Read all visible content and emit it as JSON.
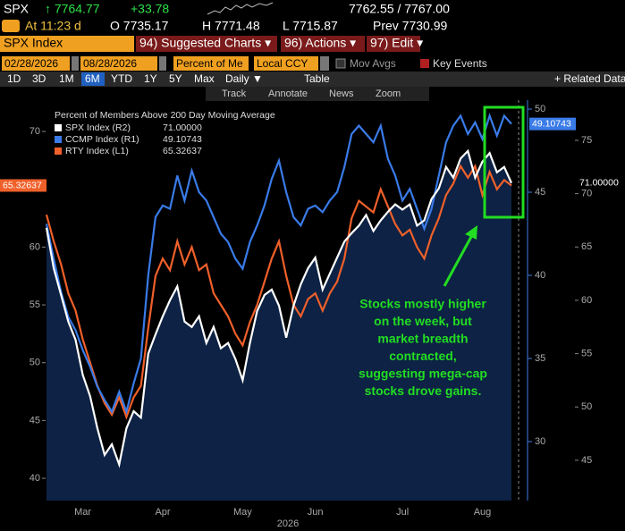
{
  "header": {
    "ticker": "SPX",
    "last": "↑ 7764.77",
    "change": "+33.78",
    "bid_ask": "7762.55 / 7767.00",
    "time": "At 11:23 d",
    "open": "O 7735.17",
    "high": "H 7771.48",
    "low": "L 7715.87",
    "prev": "Prev 7730.99"
  },
  "menu": {
    "security": "SPX Index",
    "items": [
      "94) Suggested Charts ▾",
      "96) Actions ▾",
      "97) Edit ▾"
    ]
  },
  "controls": {
    "start_date": "02/28/2026",
    "end_date": "08/28/2026",
    "field": "Percent of Me",
    "currency": "Local CCY",
    "options": [
      "Mov Avgs",
      "Key Events"
    ]
  },
  "periods": [
    "1D",
    "3D",
    "1M",
    "6M",
    "YTD",
    "1Y",
    "5Y",
    "Max"
  ],
  "selected_period_index": 3,
  "frequency": "Daily ▼",
  "table": "Table",
  "related": "+ Related Data",
  "tools": [
    "Track",
    "Annotate",
    "News",
    "Zoom"
  ],
  "chart_data": {
    "type": "line",
    "legend_title": "Percent of Members Above 200 Day Moving Average",
    "x_title": "2026",
    "categories": [
      null,
      null,
      null,
      null,
      null,
      "Mar",
      null,
      null,
      null,
      null,
      null,
      null,
      null,
      null,
      null,
      null,
      "Apr",
      null,
      null,
      null,
      null,
      null,
      null,
      null,
      null,
      null,
      null,
      "May",
      null,
      null,
      null,
      null,
      null,
      null,
      null,
      null,
      null,
      "Jun",
      null,
      null,
      null,
      null,
      null,
      null,
      null,
      null,
      null,
      null,
      null,
      "Jul",
      null,
      null,
      null,
      null,
      null,
      null,
      null,
      null,
      null,
      null,
      "Aug",
      null,
      null,
      null,
      null
    ],
    "ylim": [
      38.07,
      72.71
    ],
    "yticks": [
      40,
      45,
      50,
      55,
      60,
      65,
      70
    ],
    "y2lim": [
      26.45,
      50.54
    ],
    "y2ticks": [
      30,
      35,
      40,
      45,
      50
    ],
    "y3lim": [
      41.22,
      78.77
    ],
    "y3ticks": [
      45,
      50,
      55,
      60,
      65,
      70,
      75
    ],
    "series": [
      {
        "name": "SPX Index (R2)",
        "color": "#ffffff",
        "axis": "y3",
        "last_value_label": "71.00000",
        "values": [
          66.8,
          63,
          60.5,
          58,
          56.3,
          53,
          51,
          48,
          45.5,
          46.5,
          44.6,
          48,
          49.6,
          49,
          55,
          56.8,
          58.5,
          60,
          61.3,
          58,
          57.5,
          58.5,
          56,
          57.5,
          55.5,
          56,
          54.5,
          52.5,
          56,
          59,
          60.5,
          61,
          59.5,
          56.5,
          59.5,
          61.5,
          63,
          64,
          61,
          62.5,
          64,
          65.5,
          66.3,
          67,
          68,
          66.5,
          67.5,
          68.3,
          69,
          68.5,
          69,
          67,
          67.5,
          69.5,
          70.5,
          72.5,
          71.5,
          73.3,
          74,
          71.5,
          73,
          73.8,
          72,
          72.5,
          71
        ]
      },
      {
        "name": "CCMP Index (R1)",
        "color": "#3a7be8",
        "axis": "y2",
        "last_value_label": "49.10743",
        "values": [
          43.1,
          41,
          39,
          37.5,
          36.7,
          35.5,
          34.5,
          33.3,
          32.5,
          31.8,
          33,
          31.8,
          33.5,
          35,
          40,
          43.5,
          44.2,
          44,
          46,
          44.5,
          46.3,
          45,
          44.5,
          43.5,
          42.5,
          42,
          41,
          40.4,
          42,
          43,
          44.2,
          45.8,
          46.9,
          45,
          43.5,
          43,
          44,
          44.2,
          43.8,
          44.5,
          45,
          46.5,
          48.5,
          49,
          48.5,
          48,
          49,
          47,
          46,
          44.5,
          45.2,
          44,
          42.8,
          44,
          46,
          48,
          49,
          49.6,
          48.5,
          49.2,
          48.2,
          49.6,
          48.4,
          49.6,
          49.10743
        ]
      },
      {
        "name": "RTY Index (L1)",
        "color": "#f0602a",
        "axis": "y",
        "last_value_label": "65.32637",
        "values": [
          62.8,
          60.5,
          58.5,
          56,
          54.5,
          52,
          50,
          48,
          46.5,
          45.5,
          47,
          45.3,
          47,
          48,
          53,
          57.5,
          59,
          58,
          60.5,
          58.5,
          60,
          58,
          58.5,
          56,
          55,
          54,
          52.5,
          51.5,
          53.5,
          55,
          57,
          59,
          60.5,
          57.5,
          55,
          54,
          55.5,
          56,
          54.5,
          56,
          57,
          59,
          62.5,
          64,
          63.5,
          63,
          65,
          63.5,
          62,
          61,
          61.5,
          60,
          59,
          61,
          62.5,
          64.5,
          65.5,
          67,
          66,
          67,
          64.5,
          66.5,
          65,
          65.8,
          65.32637
        ]
      }
    ],
    "annotation": [
      "Stocks mostly higher",
      "on the week, but",
      "market breadth",
      "contracted,",
      "suggesting mega-cap",
      "stocks drove gains."
    ],
    "annotation_color": "#22dd22"
  }
}
